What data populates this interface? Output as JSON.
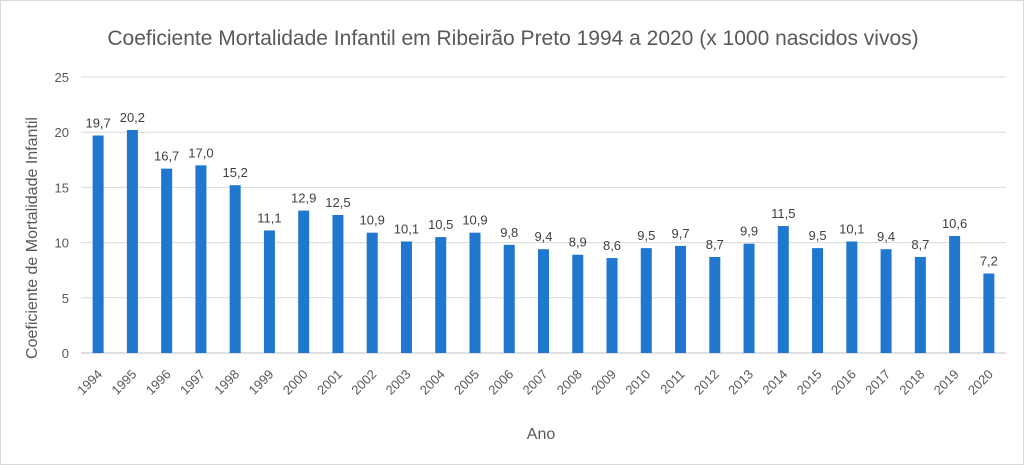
{
  "chart_data": {
    "type": "bar",
    "title": "Coeficiente Mortalidade Infantil em Ribeirão Preto 1994 a 2020 (x 1000 nascidos vivos)",
    "xlabel": "Ano",
    "ylabel": "Coeficiente de Mortalidade Infantil",
    "categories": [
      "1994",
      "1995",
      "1996",
      "1997",
      "1998",
      "1999",
      "2000",
      "2001",
      "2002",
      "2003",
      "2004",
      "2005",
      "2006",
      "2007",
      "2008",
      "2009",
      "2010",
      "2011",
      "2012",
      "2013",
      "2014",
      "2015",
      "2016",
      "2017",
      "2018",
      "2019",
      "2020"
    ],
    "values": [
      19.7,
      20.2,
      16.7,
      17.0,
      15.2,
      11.1,
      12.9,
      12.5,
      10.9,
      10.1,
      10.5,
      10.9,
      9.8,
      9.4,
      8.9,
      8.6,
      9.5,
      9.7,
      8.7,
      9.9,
      11.5,
      9.5,
      10.1,
      9.4,
      8.7,
      10.6,
      7.2
    ],
    "data_labels": [
      "19,7",
      "20,2",
      "16,7",
      "17,0",
      "15,2",
      "11,1",
      "12,9",
      "12,5",
      "10,9",
      "10,1",
      "10,5",
      "10,9",
      "9,8",
      "9,4",
      "8,9",
      "8,6",
      "9,5",
      "9,7",
      "8,7",
      "9,9",
      "11,5",
      "9,5",
      "10,1",
      "9,4",
      "8,7",
      "10,6",
      "7,2"
    ],
    "ylim": [
      0,
      25
    ],
    "yticks": [
      0,
      5,
      10,
      15,
      20,
      25
    ],
    "grid": true,
    "legend": "none",
    "bar_color": "#1f77d0"
  }
}
